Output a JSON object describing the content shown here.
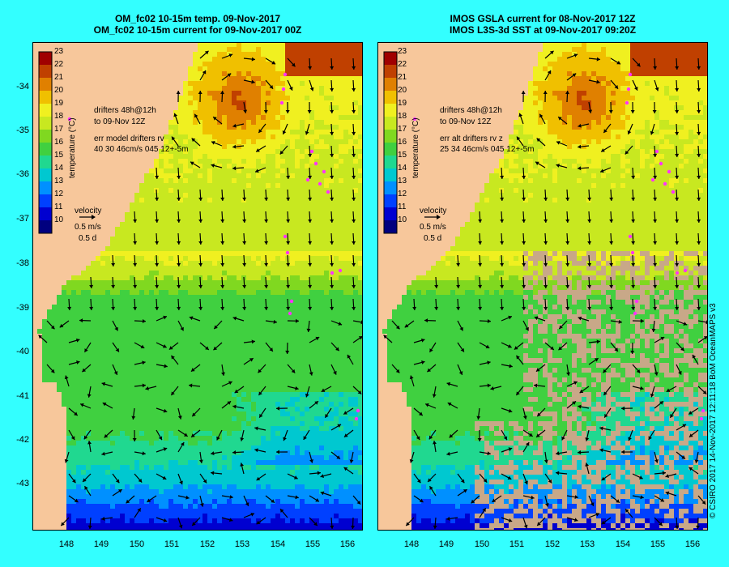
{
  "left_panel": {
    "title_line1": "OM_fc02 10-15m temp. 09-Nov-2017",
    "title_line2": "OM_fc02 10-15m current for 09-Nov-2017 00Z",
    "drifters_line1": "drifters 48h@12h",
    "drifters_line2": "to 09-Nov 12Z",
    "err_line1": "err model drifters rv",
    "err_line2": "40 30 46cm/s 045 12+-5m"
  },
  "right_panel": {
    "title_line1": "IMOS GSLA current for 08-Nov-2017 12Z",
    "title_line2": "IMOS L3S-3d SST at 09-Nov-2017 09:20Z",
    "drifters_line1": "drifters 48h@12h",
    "drifters_line2": "to 09-Nov 12Z",
    "err_line1": "err alt drifters rv z",
    "err_line2": "25 34 46cm/s 045 12+-5m"
  },
  "colorbar": {
    "label": "temperature (°C)",
    "ticks": [
      "23",
      "22",
      "21",
      "20",
      "19",
      "18",
      "17",
      "16",
      "15",
      "14",
      "13",
      "12",
      "11",
      "10"
    ]
  },
  "velocity_key": {
    "title": "velocity",
    "speed": "0.5 m/s",
    "time": "0.5 d"
  },
  "axes": {
    "lat_labels": [
      "-34",
      "-35",
      "-36",
      "-37",
      "-38",
      "-39",
      "-40",
      "-41",
      "-42",
      "-43"
    ],
    "lon_labels": [
      "148",
      "149",
      "150",
      "151",
      "152",
      "153",
      "154",
      "155",
      "156"
    ]
  },
  "credit": "© CSIRO 2017   14-Nov-2017 12:11:18 BoM OceanMAPS v3",
  "colors": {
    "background": "#33ffff",
    "land": "#f7c79b",
    "missing_data": "#c8a888",
    "drifter": "#ff33ff",
    "colormap": [
      "#00007f",
      "#0000d0",
      "#0040ff",
      "#0090ff",
      "#00c8d0",
      "#20d890",
      "#40d040",
      "#80d820",
      "#c8e820",
      "#f0f020",
      "#f0c000",
      "#e08000",
      "#c04000",
      "#a00000"
    ]
  }
}
